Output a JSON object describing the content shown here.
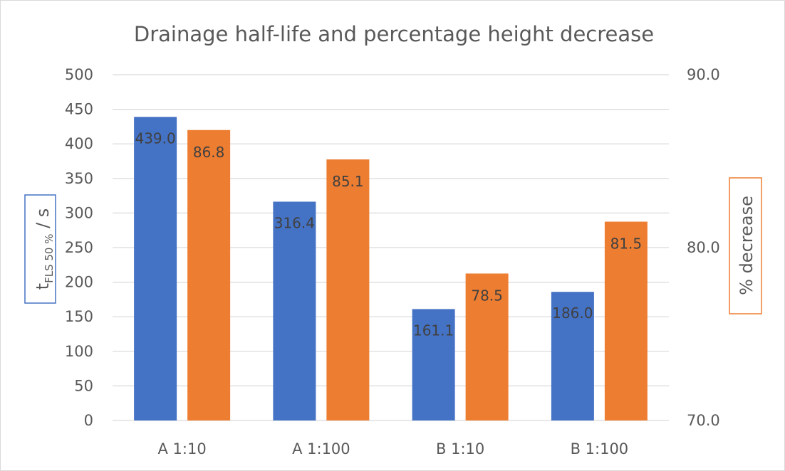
{
  "chart_data": {
    "type": "bar",
    "title": "Drainage half-life and percentage height decrease",
    "categories": [
      "A 1:10",
      "A 1:100",
      "B 1:10",
      "B 1:100"
    ],
    "series": [
      {
        "values": [
          439.0,
          316.4,
          161.1,
          186.0
        ],
        "color": "#4472C4",
        "axis": "left"
      },
      {
        "values": [
          86.8,
          85.1,
          78.5,
          81.5
        ],
        "color": "#ED7D31",
        "axis": "right"
      }
    ],
    "data_labels_left": [
      "439.0",
      "316.4",
      "161.1",
      "186.0"
    ],
    "data_labels_right": [
      "86.8",
      "85.1",
      "78.5",
      "81.5"
    ],
    "y_left": {
      "label_main": "t",
      "label_sub": "FLS 50 %",
      "label_rest": " / s",
      "ylim": [
        0,
        500
      ],
      "ticks": [
        "0",
        "50",
        "100",
        "150",
        "200",
        "250",
        "300",
        "350",
        "400",
        "450",
        "500"
      ],
      "label_box_color": "#4472C4"
    },
    "y_right": {
      "label": "% decrease",
      "ylim": [
        70.0,
        90.0
      ],
      "ticks": [
        "70.0",
        "80.0",
        "90.0"
      ],
      "label_box_color": "#ED7D31"
    },
    "grid": true,
    "legend": "none"
  }
}
